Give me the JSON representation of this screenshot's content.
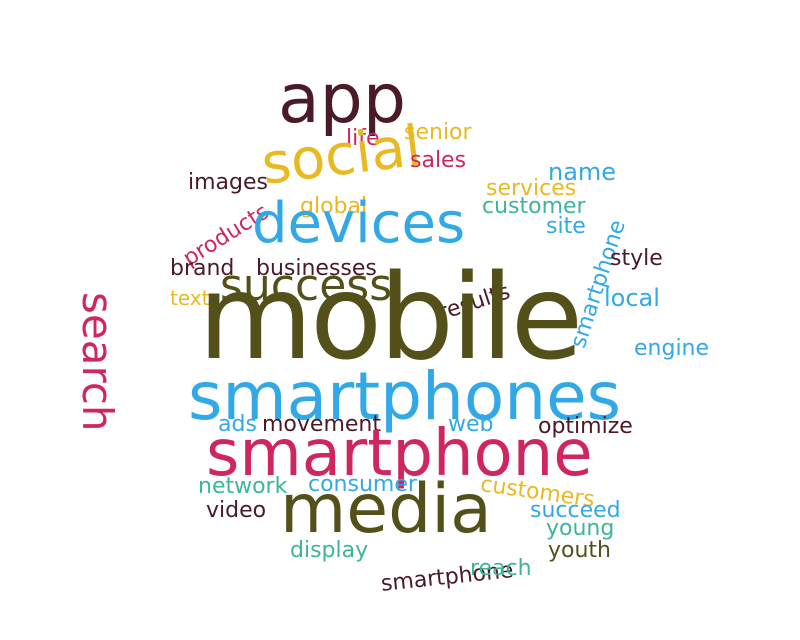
{
  "words": {
    "mobile": "mobile",
    "smartphones": "smartphones",
    "smartphone_big": "smartphone",
    "media": "media",
    "app": "app",
    "social": "social",
    "devices": "devices",
    "success": "success",
    "search": "search",
    "life": "life",
    "senior": "senior",
    "sales": "sales",
    "name": "name",
    "images": "images",
    "services": "services",
    "products": "products",
    "global": "global",
    "customer": "customer",
    "smartphone_vertical": "smartphone",
    "site": "site",
    "brand": "brand",
    "businesses": "businesses",
    "style": "style",
    "results": "results",
    "text": "text",
    "local": "local",
    "engine": "engine",
    "ads": "ads",
    "movement": "movement",
    "web": "web",
    "optimize": "optimize",
    "network": "network",
    "consumer": "consumer",
    "customers": "customers",
    "video": "video",
    "succeed": "succeed",
    "young": "young",
    "display": "display",
    "youth": "youth",
    "smartphone_small": "smartphone",
    "reach": "reach"
  },
  "colors": {
    "maroon": "#4a1a27",
    "olive": "#54501a",
    "blue": "#32a9e6",
    "pink": "#d0265f",
    "gold": "#e8b921",
    "teal": "#3fb49a"
  }
}
